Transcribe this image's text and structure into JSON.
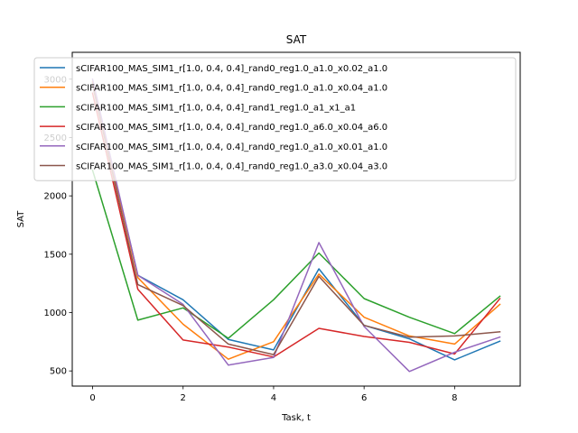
{
  "chart_data": {
    "type": "line",
    "title": "SAT",
    "xlabel": "Task, t",
    "ylabel": "SAT",
    "xlim": [
      -0.45,
      9.45
    ],
    "ylim": [
      370,
      3230
    ],
    "xticks": [
      0,
      2,
      4,
      6,
      8
    ],
    "yticks": [
      500,
      1000,
      1500,
      2000,
      2500,
      3000
    ],
    "grid": false,
    "legend_position": "top-left",
    "x": [
      0,
      1,
      2,
      3,
      4,
      5,
      6,
      7,
      8,
      9
    ],
    "series": [
      {
        "name": "sCIFAR100_MAS_SIM1_r[1.0, 0.4, 0.4]_rand0_reg1.0_a1.0_x0.02_a1.0",
        "color": "#1f77b4",
        "values": [
          2970,
          1320,
          1110,
          770,
          680,
          1375,
          890,
          775,
          595,
          755
        ]
      },
      {
        "name": "sCIFAR100_MAS_SIM1_r[1.0, 0.4, 0.4]_rand0_reg1.0_a1.0_x0.04_a1.0",
        "color": "#ff7f0e",
        "values": [
          2980,
          1300,
          900,
          600,
          750,
          1330,
          960,
          800,
          730,
          1070
        ]
      },
      {
        "name": "sCIFAR100_MAS_SIM1_r[1.0, 0.4, 0.4]_rand1_reg1.0_a1_x1_a1",
        "color": "#2ca02c",
        "values": [
          2220,
          935,
          1040,
          780,
          1110,
          1510,
          1120,
          960,
          820,
          1140
        ]
      },
      {
        "name": "sCIFAR100_MAS_SIM1_r[1.0, 0.4, 0.4]_rand0_reg1.0_a6.0_x0.04_a6.0",
        "color": "#d62728",
        "values": [
          2880,
          1200,
          765,
          705,
          620,
          865,
          795,
          745,
          645,
          1120
        ]
      },
      {
        "name": "sCIFAR100_MAS_SIM1_r[1.0, 0.4, 0.4]_rand0_reg1.0_a1.0_x0.01_a1.0",
        "color": "#9467bd",
        "values": [
          3000,
          1320,
          1070,
          550,
          615,
          1600,
          880,
          495,
          660,
          790
        ]
      },
      {
        "name": "sCIFAR100_MAS_SIM1_r[1.0, 0.4, 0.4]_rand0_reg1.0_a3.0_x0.04_a3.0",
        "color": "#8c564b",
        "values": [
          2950,
          1240,
          1060,
          730,
          640,
          1310,
          890,
          790,
          800,
          835
        ]
      }
    ]
  }
}
